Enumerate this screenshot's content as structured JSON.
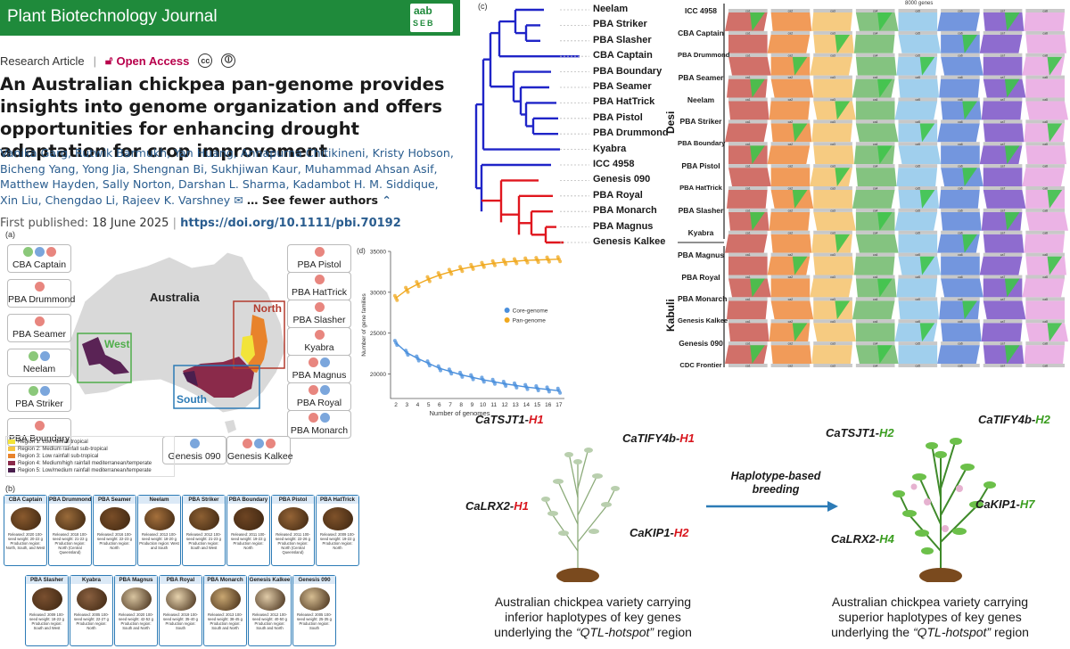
{
  "journal": {
    "name": "Plant Biotechnology Journal",
    "logo_top": "aab",
    "logo_bottom": "SEB"
  },
  "article": {
    "type": "Research Article",
    "access": "Open Access",
    "title": "An Australian chickpea pan-genome provides insights into genome organization and offers opportunities for enhancing drought adaptation for crop improvement",
    "authors": "Vanika Garg, Rutwik Barmukh, Yan Huang, Annapurna Chitikineni, Kristy Hobson, Bicheng Yang, Yong Jia, Shengnan Bi, Sukhjiwan Kaur, Muhammad Ahsan Asif, Matthew Hayden, Sally Norton, Darshan L. Sharma, Kadambot H. M. Siddique, Xin Liu, Chengdao Li, Rajeev K. Varshney",
    "see_fewer": "See fewer authors",
    "first_published_label": "First published:",
    "first_published_date": "18 June 2025",
    "doi": "https://doi.org/10.1111/pbi.70192"
  },
  "panel_a": {
    "label": "(a)",
    "country": "Australia",
    "regions": [
      "North",
      "West",
      "South"
    ],
    "colors": {
      "red": "#e8867f",
      "green": "#8bc87a",
      "blue": "#7ba6dc"
    },
    "left_varieties": [
      {
        "name": "CBA Captain",
        "dots": [
          "green",
          "blue",
          "red"
        ]
      },
      {
        "name": "PBA Drummond",
        "dots": [
          "red"
        ]
      },
      {
        "name": "PBA Seamer",
        "dots": [
          "red"
        ]
      },
      {
        "name": "Neelam",
        "dots": [
          "green",
          "blue"
        ]
      },
      {
        "name": "PBA Striker",
        "dots": [
          "green",
          "blue"
        ]
      },
      {
        "name": "PBA Boundary",
        "dots": [
          "red"
        ]
      }
    ],
    "right_varieties": [
      {
        "name": "PBA Pistol",
        "dots": [
          "red"
        ]
      },
      {
        "name": "PBA HatTrick",
        "dots": [
          "red"
        ]
      },
      {
        "name": "PBA Slasher",
        "dots": [
          "red"
        ]
      },
      {
        "name": "Kyabra",
        "dots": [
          "red"
        ]
      },
      {
        "name": "PBA Magnus",
        "dots": [
          "red",
          "blue"
        ]
      },
      {
        "name": "PBA Royal",
        "dots": [
          "red",
          "blue"
        ]
      },
      {
        "name": "PBA Monarch",
        "dots": [
          "red",
          "blue"
        ]
      }
    ],
    "bottom_varieties": [
      {
        "name": "Genesis 090",
        "dots": [
          "blue"
        ]
      },
      {
        "name": "Genesis Kalkee",
        "dots": [
          "red",
          "blue",
          "red"
        ]
      }
    ],
    "legend": [
      {
        "label": "Region 1: Low rainfall tropical",
        "color": "#f2e43a"
      },
      {
        "label": "Region 2: Medium rainfall sub-tropical",
        "color": "#f5c542"
      },
      {
        "label": "Region 3: Low rainfall sub-tropical",
        "color": "#e8832b"
      },
      {
        "label": "Region 4: Medium/high rainfall mediterranean/temperate",
        "color": "#8a2a4a"
      },
      {
        "label": "Region 5: Low/medium rainfall mediterranean/temperate",
        "color": "#4a1f4e"
      }
    ]
  },
  "panel_b": {
    "label": "(b)",
    "row1": [
      {
        "name": "CBA Captain",
        "info": "Released: 2020 100-seed weight: 20-22 g Production region: North, South, and West"
      },
      {
        "name": "PBA Drummond",
        "info": "Released: 2018 100-seed weight: 21-22 g Production region: North (Central Queensland)"
      },
      {
        "name": "PBA Seamer",
        "info": "Released: 2016 100-seed weight: 22-23 g Production region: North"
      },
      {
        "name": "Neelam",
        "info": "Released: 2013 100-seed weight: 18-20 g Production region: West and South"
      },
      {
        "name": "PBA Striker",
        "info": "Released: 2012 100-seed weight: 21-23 g Production region: South and West"
      },
      {
        "name": "PBA Boundary",
        "info": "Released: 2011 100-seed weight: 19-22 g Production region: North"
      },
      {
        "name": "PBA Pistol",
        "info": "Released: 2011 100-seed weight: 22-26 g Production region: North (Central Queensland)"
      },
      {
        "name": "PBA HatTrick",
        "info": "Released: 2009 100-seed weight: 19-22 g Production region: North"
      }
    ],
    "row2": [
      {
        "name": "PBA Slasher",
        "info": "Released: 2009 100-seed weight: 18-22 g Production region: South and West"
      },
      {
        "name": "Kyabra",
        "info": "Released: 2005 100-seed weight: 22-27 g Production region: North"
      },
      {
        "name": "PBA Magnus",
        "info": "Released: 2020 100-seed weight: 42-52 g Production region: South and North"
      },
      {
        "name": "PBA Royal",
        "info": "Released: 2019 100-seed weight: 35-40 g Production region: South"
      },
      {
        "name": "PBA Monarch",
        "info": "Released: 2013 100-seed weight: 38-45 g Production region: South and North"
      },
      {
        "name": "Genesis Kalkee",
        "info": "Released: 2012 100-seed weight: 40-50 g Production region: South and North"
      },
      {
        "name": "Genesis 090",
        "info": "Released: 2005 100-seed weight: 25-35 g Production region: South"
      }
    ]
  },
  "panel_c": {
    "label": "(c)",
    "taxa": [
      "Neelam",
      "PBA Striker",
      "PBA Slasher",
      "CBA Captain",
      "PBA Boundary",
      "PBA Seamer",
      "PBA HatTrick",
      "PBA Pistol",
      "PBA Drummond",
      "Kyabra",
      "ICC 4958",
      "Genesis 090",
      "PBA Royal",
      "PBA Monarch",
      "PBA Magnus",
      "Genesis Kalkee"
    ],
    "desi_color": "#1f24c8",
    "kabuli_color": "#e0161e"
  },
  "synteny": {
    "title": "8000 genes",
    "group_desi": "Desi",
    "group_kabuli": "Kabuli",
    "genomes": [
      "ICC 4958",
      "CBA Captain",
      "PBA Drummond",
      "PBA Seamer",
      "Neelam",
      "PBA Striker",
      "PBA Boundary",
      "PBA Pistol",
      "PBA HatTrick",
      "PBA Slasher",
      "Kyabra",
      "PBA Magnus",
      "PBA Royal",
      "PBA Monarch",
      "Genesis Kalkee",
      "Genesis 090",
      "CDC Frontier"
    ],
    "chromosome_colors": [
      "#c9574f",
      "#ef8a3c",
      "#f5c26b",
      "#6fb86a",
      "#8fc7ea",
      "#5b84d8",
      "#7a52c7",
      "#e7a6e0"
    ],
    "chromosome_labels": [
      "ca1",
      "ca2",
      "ca3",
      "ca4",
      "ca5",
      "ca6",
      "ca7",
      "ca8"
    ]
  },
  "chart_data": {
    "type": "line",
    "title": "",
    "panel_label": "(d)",
    "xlabel": "Number of genomes",
    "ylabel": "Number of gene families",
    "x": [
      2,
      3,
      4,
      5,
      6,
      7,
      8,
      9,
      10,
      11,
      12,
      13,
      14,
      15,
      16,
      17
    ],
    "xlim": [
      1.5,
      17.5
    ],
    "ylim": [
      17000,
      35000
    ],
    "yticks": [
      20000,
      25000,
      30000,
      35000
    ],
    "legend_position": "center-right",
    "series": [
      {
        "name": "Pan-genome",
        "color": "#f0a81e",
        "values": [
          29300,
          30300,
          31000,
          31600,
          32100,
          32500,
          32850,
          33100,
          33350,
          33550,
          33700,
          33800,
          33900,
          33950,
          34000,
          34050
        ]
      },
      {
        "name": "Core-genome",
        "color": "#4a8fdc",
        "values": [
          23800,
          22600,
          21900,
          21300,
          20700,
          20300,
          19900,
          19600,
          19300,
          19050,
          18800,
          18600,
          18400,
          18250,
          18100,
          17950
        ]
      }
    ]
  },
  "breeding": {
    "arrow_label": "Haplotype-based breeding",
    "left_genes": [
      {
        "gene": "CaTSJT1-",
        "hap": "H1",
        "tone": "red"
      },
      {
        "gene": "CaTIFY4b-",
        "hap": "H1",
        "tone": "red"
      },
      {
        "gene": "CaLRX2-",
        "hap": "H1",
        "tone": "red"
      },
      {
        "gene": "CaKIP1-",
        "hap": "H2",
        "tone": "red"
      }
    ],
    "right_genes": [
      {
        "gene": "CaTSJT1-",
        "hap": "H2",
        "tone": "green"
      },
      {
        "gene": "CaTIFY4b-",
        "hap": "H2",
        "tone": "green"
      },
      {
        "gene": "CaKIP1-",
        "hap": "H7",
        "tone": "green"
      },
      {
        "gene": "CaLRX2-",
        "hap": "H4",
        "tone": "green"
      }
    ],
    "left_caption": [
      "Australian chickpea variety carrying",
      "inferior haplotypes of key genes",
      "underlying the",
      "“QTL-hotspot”",
      "region"
    ],
    "right_caption": [
      "Australian chickpea variety carrying",
      "superior haplotypes of key genes",
      "underlying the",
      "“QTL-hotspot”",
      "region"
    ]
  }
}
